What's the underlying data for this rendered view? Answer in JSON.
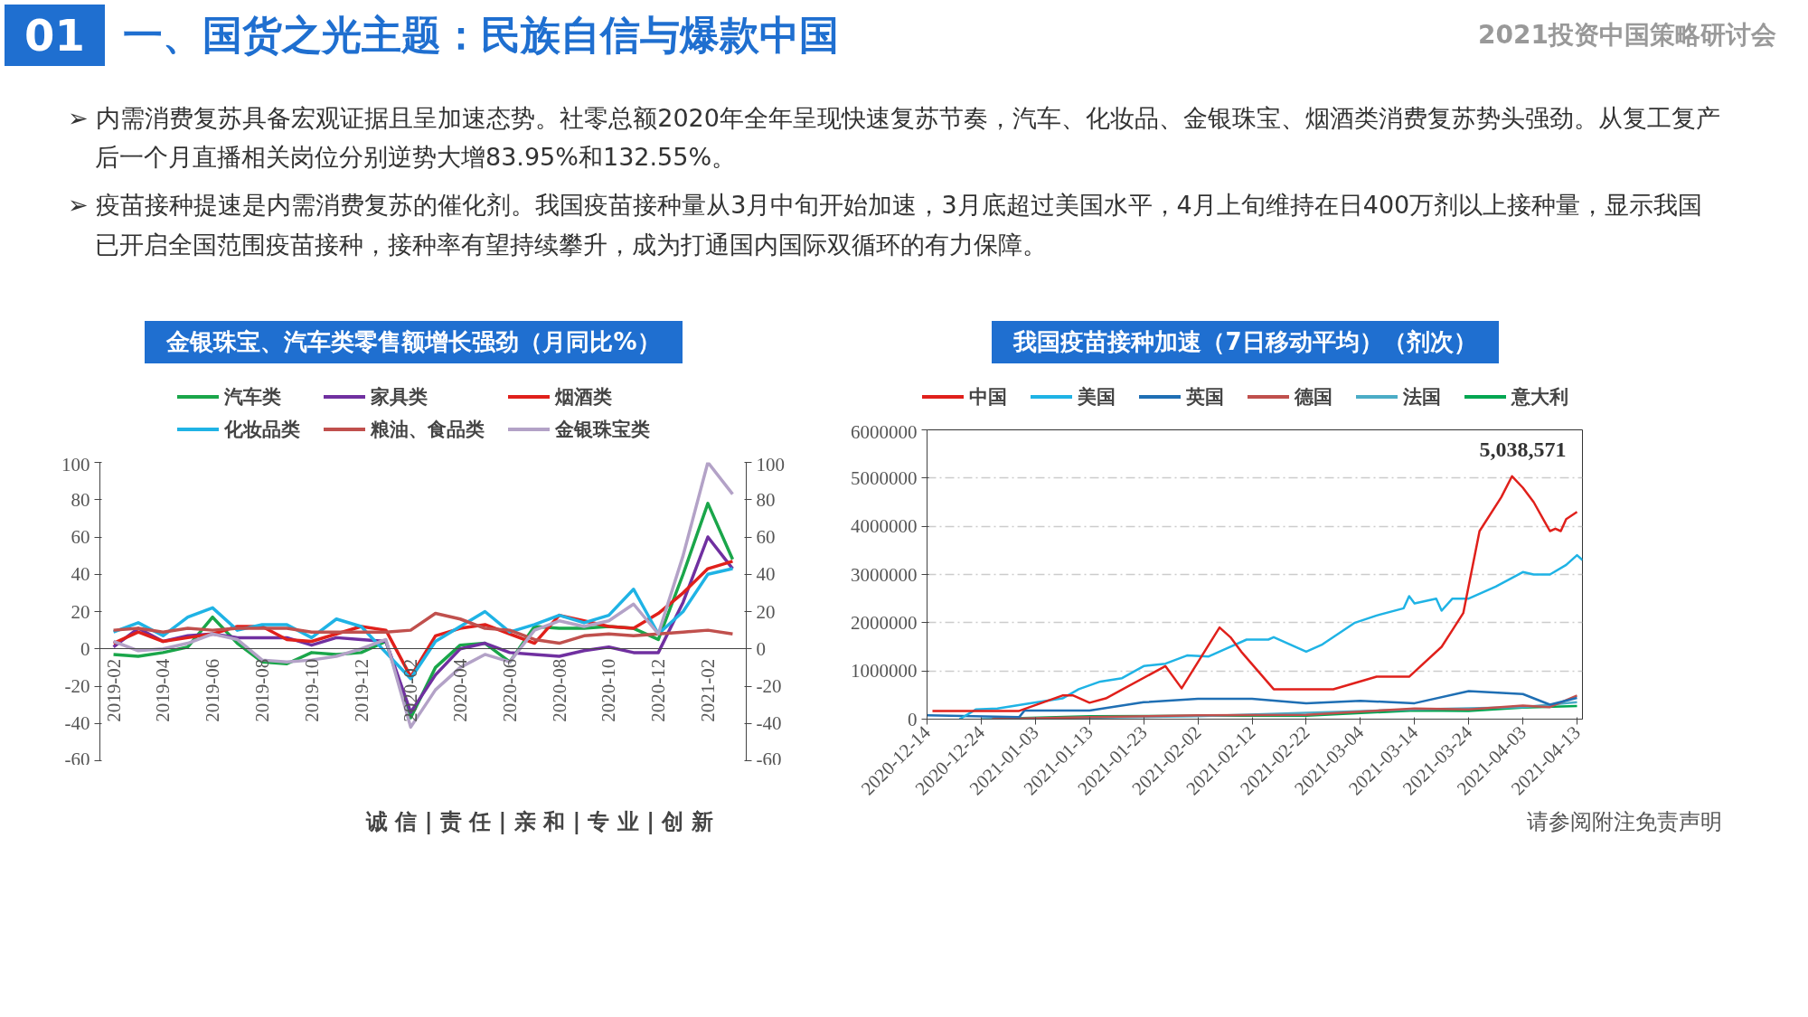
{
  "chart_data": [
    {
      "type": "line",
      "title": "金银珠宝、汽车类零售额增长强劲（月同比%）",
      "annotations": [
        "01",
        "一、国货之光主题：民族自信与爆款中国",
        "2021投资中国策略研讨会",
        "➢ 内需消费复苏具备宏观证据且呈加速态势。社零总额2020年全年呈现快速复苏节奏，汽车、化妆品、金银珠宝、烟酒类消费复苏势头强劲。从复工复产后一个月直播相关岗位分别逆势大增83.95%和132.55%。",
        "➢ 疫苗接种提速是内需消费复苏的催化剂。我国疫苗接种量从3月中旬开始加速，3月底超过美国水平，4月上旬维持在日400万剂以上接种量，显示我国已开启全国范围疫苗接种，接种率有望持续攀升，成为打通国内国际双循环的有力保障。",
        "诚 信 | 责 任 | 亲 和 | 专 业 | 创 新",
        "请参阅附注免责声明"
      ],
      "categories": [
        "2019-02",
        null,
        "2019-04",
        null,
        "2019-06",
        null,
        "2019-08",
        null,
        "2019-10",
        null,
        "2019-12",
        null,
        "2020-02",
        null,
        "2020-04",
        null,
        "2020-06",
        null,
        "2020-08",
        null,
        "2020-10",
        null,
        "2020-12",
        null,
        "2021-02",
        null
      ],
      "series": [
        {
          "name": "汽车类",
          "color": "#1aa64a",
          "values": [
            -3,
            -4,
            -2,
            1,
            17,
            3,
            -7,
            -8,
            -2,
            -3,
            -2,
            4,
            -37,
            -10,
            2,
            3,
            -7,
            12,
            11,
            11,
            12,
            11,
            5,
            40,
            78,
            48
          ]
        },
        {
          "name": "家具类",
          "color": "#7030a0",
          "values": [
            1,
            11,
            4,
            7,
            8,
            6,
            6,
            6,
            2,
            6,
            5,
            4,
            -34,
            -14,
            0,
            3,
            -2,
            -3,
            -4,
            -1,
            1,
            -2,
            -2,
            25,
            60,
            43
          ]
        },
        {
          "name": "烟酒类",
          "color": "#e0201b",
          "values": [
            3,
            9,
            4,
            6,
            8,
            12,
            12,
            5,
            4,
            8,
            12,
            10,
            -15,
            7,
            11,
            13,
            8,
            3,
            18,
            15,
            12,
            11,
            19,
            30,
            43,
            47
          ]
        },
        {
          "name": "化妆品类",
          "color": "#1fb3e5",
          "values": [
            9,
            14,
            7,
            17,
            22,
            10,
            13,
            13,
            6,
            16,
            12,
            -2,
            -16,
            4,
            12,
            20,
            9,
            13,
            18,
            14,
            18,
            32,
            8,
            20,
            40,
            43
          ]
        },
        {
          "name": "粮油、食品类",
          "color": "#c0504d",
          "values": [
            10,
            11,
            9,
            11,
            10,
            11,
            11,
            11,
            9,
            9,
            9,
            9,
            10,
            19,
            16,
            11,
            10,
            5,
            3,
            7,
            8,
            7,
            8,
            9,
            10,
            8
          ]
        },
        {
          "name": "金银珠宝类",
          "color": "#b3a2c7",
          "values": [
            4,
            -1,
            0,
            3,
            8,
            5,
            -6,
            -7,
            -6,
            -4,
            0,
            5,
            -42,
            -22,
            -10,
            -3,
            -7,
            10,
            15,
            12,
            15,
            24,
            8,
            50,
            100,
            83
          ]
        }
      ],
      "ylim": [
        -60,
        100
      ],
      "yticks": [
        -60,
        -40,
        -20,
        0,
        20,
        40,
        60,
        80,
        100
      ],
      "y2lim": [
        -60,
        100
      ],
      "y2ticks": [
        -60,
        -40,
        -20,
        0,
        20,
        40,
        60,
        80,
        100
      ],
      "grid": false,
      "legend": "top"
    },
    {
      "type": "line",
      "title": "我国疫苗接种加速（7日移动平均）（剂次）",
      "annotations": [
        {
          "text": "5,038,571",
          "x": "2021-04-01",
          "y": 5038571
        }
      ],
      "series": [
        {
          "name": "中国",
          "color": "#e0201b",
          "x": [
            "2020-12-15",
            "2020-12-31",
            "2021-01-08",
            "2021-01-10",
            "2021-01-13",
            "2021-01-16",
            "2021-01-27",
            "2021-01-30",
            "2021-02-06",
            "2021-02-08",
            "2021-02-10",
            "2021-02-16",
            "2021-02-27",
            "2021-03-07",
            "2021-03-13",
            "2021-03-19",
            "2021-03-21",
            "2021-03-23",
            "2021-03-26",
            "2021-03-30",
            "2021-04-01",
            "2021-04-03",
            "2021-04-05",
            "2021-04-07",
            "2021-04-08",
            "2021-04-09",
            "2021-04-10",
            "2021-04-11",
            "2021-04-13"
          ],
          "values": [
            170000,
            170000,
            490000,
            490000,
            340000,
            430000,
            1100000,
            640000,
            1900000,
            1700000,
            1400000,
            620000,
            620000,
            880000,
            880000,
            1500000,
            1850000,
            2200000,
            3900000,
            4600000,
            5038571,
            4800000,
            4500000,
            4100000,
            3900000,
            3950000,
            3900000,
            4150000,
            4300000
          ]
        },
        {
          "name": "美国",
          "color": "#1fb3e5",
          "x": [
            "2020-12-20",
            "2020-12-23",
            "2020-12-27",
            "2021-01-02",
            "2021-01-08",
            "2021-01-11",
            "2021-01-15",
            "2021-01-19",
            "2021-01-23",
            "2021-01-27",
            "2021-01-31",
            "2021-02-04",
            "2021-02-07",
            "2021-02-11",
            "2021-02-15",
            "2021-02-16",
            "2021-02-22",
            "2021-02-25",
            "2021-03-03",
            "2021-03-07",
            "2021-03-12",
            "2021-03-13",
            "2021-03-14",
            "2021-03-18",
            "2021-03-19",
            "2021-03-21",
            "2021-03-24",
            "2021-03-29",
            "2021-04-03",
            "2021-04-05",
            "2021-04-08",
            "2021-04-11",
            "2021-04-13",
            "2021-04-14"
          ],
          "values": [
            0,
            200000,
            220000,
            330000,
            430000,
            620000,
            780000,
            850000,
            1100000,
            1150000,
            1320000,
            1300000,
            1450000,
            1650000,
            1650000,
            1700000,
            1400000,
            1550000,
            2000000,
            2150000,
            2300000,
            2550000,
            2400000,
            2500000,
            2250000,
            2500000,
            2500000,
            2750000,
            3050000,
            3000000,
            3000000,
            3200000,
            3400000,
            3300000
          ]
        },
        {
          "name": "英国",
          "color": "#1f6fb4",
          "x": [
            "2020-12-14",
            "2020-12-31",
            "2021-01-01",
            "2021-01-13",
            "2021-01-23",
            "2021-02-02",
            "2021-02-12",
            "2021-02-22",
            "2021-03-04",
            "2021-03-14",
            "2021-03-24",
            "2021-04-03",
            "2021-04-08",
            "2021-04-13"
          ],
          "values": [
            80000,
            40000,
            180000,
            180000,
            350000,
            420000,
            420000,
            330000,
            380000,
            330000,
            580000,
            520000,
            300000,
            440000
          ]
        },
        {
          "name": "德国",
          "color": "#c0504d",
          "x": [
            "2020-12-26",
            "2021-01-13",
            "2021-02-02",
            "2021-02-22",
            "2021-03-14",
            "2021-03-24",
            "2021-04-03",
            "2021-04-08",
            "2021-04-13"
          ],
          "values": [
            0,
            40000,
            80000,
            90000,
            220000,
            200000,
            280000,
            250000,
            490000
          ]
        },
        {
          "name": "法国",
          "color": "#4bacc6",
          "x": [
            "2020-12-24",
            "2021-02-02",
            "2021-03-14",
            "2021-04-03",
            "2021-04-13"
          ],
          "values": [
            0,
            60000,
            200000,
            250000,
            350000
          ]
        },
        {
          "name": "意大利",
          "color": "#00a651",
          "x": [
            "2020-12-27",
            "2021-01-13",
            "2021-02-02",
            "2021-02-22",
            "2021-03-14",
            "2021-03-24",
            "2021-04-03",
            "2021-04-13"
          ],
          "values": [
            10000,
            60000,
            70000,
            70000,
            180000,
            170000,
            240000,
            270000
          ]
        }
      ],
      "xlim": [
        "2020-12-14",
        "2021-04-14"
      ],
      "xticks": [
        "2020-12-14",
        "2020-12-24",
        "2021-01-03",
        "2021-01-13",
        "2021-01-23",
        "2021-02-02",
        "2021-02-12",
        "2021-02-22",
        "2021-03-04",
        "2021-03-14",
        "2021-03-24",
        "2021-04-03",
        "2021-04-13"
      ],
      "ylim": [
        0,
        6000000
      ],
      "yticks": [
        0,
        1000000,
        2000000,
        3000000,
        4000000,
        5000000,
        6000000
      ],
      "grid": "y",
      "legend": "top"
    }
  ]
}
